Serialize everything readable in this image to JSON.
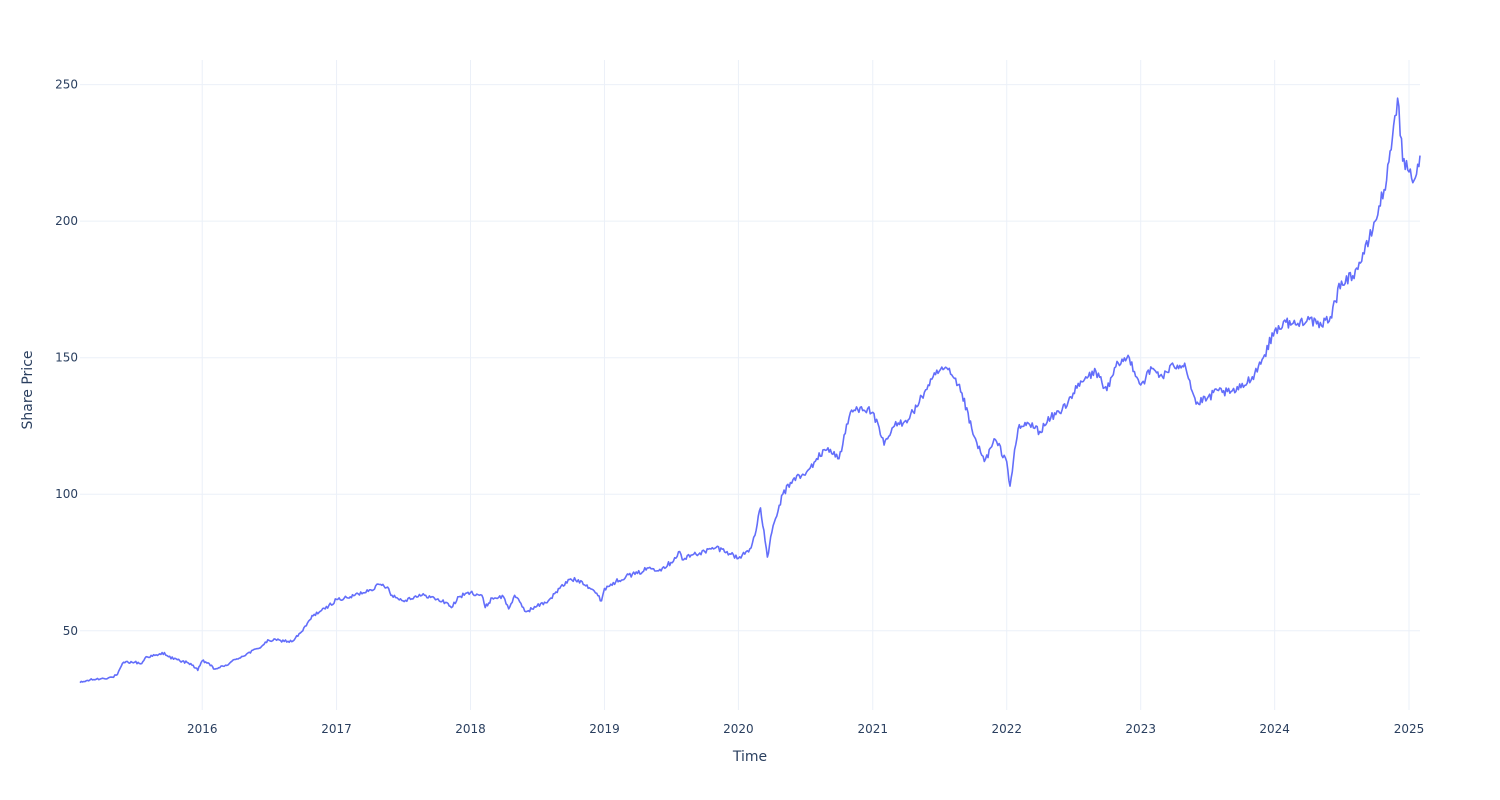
{
  "colors": {
    "line": "#636efa",
    "grid": "#ebf0f8",
    "text": "#2a3f5f",
    "background": "#ffffff"
  },
  "chart_data": {
    "type": "line",
    "title": "",
    "xlabel": "Time",
    "ylabel": "Share Price",
    "grid": true,
    "legend": "none",
    "xlim": [
      "2015-02-02",
      "2025-01-31"
    ],
    "ylim": [
      21,
      259
    ],
    "x_ticks": [
      {
        "date": "2016-01-01",
        "label": "2016"
      },
      {
        "date": "2017-01-01",
        "label": "2017"
      },
      {
        "date": "2018-01-01",
        "label": "2018"
      },
      {
        "date": "2019-01-01",
        "label": "2019"
      },
      {
        "date": "2020-01-01",
        "label": "2020"
      },
      {
        "date": "2021-01-01",
        "label": "2021"
      },
      {
        "date": "2022-01-01",
        "label": "2022"
      },
      {
        "date": "2023-01-01",
        "label": "2023"
      },
      {
        "date": "2024-01-01",
        "label": "2024"
      },
      {
        "date": "2025-01-01",
        "label": "2025"
      }
    ],
    "y_ticks": [
      {
        "value": 50,
        "label": "50"
      },
      {
        "value": 100,
        "label": "100"
      },
      {
        "value": 150,
        "label": "150"
      },
      {
        "value": 200,
        "label": "200"
      },
      {
        "value": 250,
        "label": "250"
      }
    ],
    "series": [
      {
        "name": "",
        "x": [
          "2015-02-02",
          "2015-03-01",
          "2015-04-01",
          "2015-05-01",
          "2015-05-15",
          "2015-06-01",
          "2015-07-01",
          "2015-07-20",
          "2015-08-01",
          "2015-09-01",
          "2015-09-20",
          "2015-10-01",
          "2015-11-01",
          "2015-12-01",
          "2015-12-20",
          "2016-01-01",
          "2016-01-20",
          "2016-02-01",
          "2016-02-15",
          "2016-03-01",
          "2016-04-01",
          "2016-05-01",
          "2016-06-01",
          "2016-07-01",
          "2016-08-01",
          "2016-09-01",
          "2016-10-01",
          "2016-10-20",
          "2016-11-01",
          "2016-12-01",
          "2017-01-01",
          "2017-02-01",
          "2017-03-01",
          "2017-04-01",
          "2017-05-01",
          "2017-05-20",
          "2017-06-01",
          "2017-07-01",
          "2017-08-01",
          "2017-09-01",
          "2017-10-01",
          "2017-11-01",
          "2017-11-10",
          "2017-12-01",
          "2018-01-01",
          "2018-02-01",
          "2018-02-10",
          "2018-03-01",
          "2018-04-01",
          "2018-04-15",
          "2018-05-01",
          "2018-06-01",
          "2018-07-01",
          "2018-08-01",
          "2018-09-01",
          "2018-10-01",
          "2018-11-01",
          "2018-12-01",
          "2018-12-24",
          "2019-01-01",
          "2019-02-01",
          "2019-03-01",
          "2019-04-01",
          "2019-05-01",
          "2019-06-01",
          "2019-07-01",
          "2019-07-25",
          "2019-08-01",
          "2019-09-01",
          "2019-10-01",
          "2019-11-01",
          "2019-12-01",
          "2020-01-01",
          "2020-02-01",
          "2020-02-15",
          "2020-03-01",
          "2020-03-20",
          "2020-04-01",
          "2020-05-01",
          "2020-06-01",
          "2020-07-01",
          "2020-08-01",
          "2020-09-01",
          "2020-10-01",
          "2020-11-01",
          "2020-12-01",
          "2021-01-01",
          "2021-02-01",
          "2021-03-01",
          "2021-04-01",
          "2021-05-01",
          "2021-06-01",
          "2021-07-01",
          "2021-07-15",
          "2021-08-01",
          "2021-09-01",
          "2021-10-01",
          "2021-11-01",
          "2021-12-01",
          "2022-01-01",
          "2022-01-10",
          "2022-02-01",
          "2022-03-01",
          "2022-04-01",
          "2022-05-01",
          "2022-06-01",
          "2022-07-01",
          "2022-08-01",
          "2022-09-01",
          "2022-10-01",
          "2022-11-01",
          "2022-12-01",
          "2023-01-01",
          "2023-02-01",
          "2023-03-01",
          "2023-04-01",
          "2023-05-01",
          "2023-06-01",
          "2023-07-01",
          "2023-08-01",
          "2023-09-01",
          "2023-10-01",
          "2023-11-01",
          "2023-12-01",
          "2024-01-01",
          "2024-02-01",
          "2024-03-01",
          "2024-04-01",
          "2024-05-01",
          "2024-06-01",
          "2024-07-01",
          "2024-08-01",
          "2024-09-01",
          "2024-10-01",
          "2024-11-01",
          "2024-11-20",
          "2024-12-01",
          "2024-12-15",
          "2025-01-01",
          "2025-01-15",
          "2025-01-28",
          "2025-01-31"
        ],
        "values": [
          31,
          32,
          32.5,
          33,
          34,
          38.5,
          38.5,
          38,
          40.5,
          41,
          42,
          40.5,
          39,
          38,
          35.5,
          39,
          38,
          36,
          36.5,
          37,
          39.5,
          41.5,
          43.5,
          46.5,
          46.5,
          46,
          50,
          54,
          56,
          58,
          61.5,
          62,
          63.5,
          65,
          67,
          66,
          63,
          61,
          62.5,
          63,
          61.5,
          60,
          58.5,
          62.5,
          64,
          63,
          58.5,
          62,
          62.5,
          58,
          63,
          57,
          59,
          61,
          65.5,
          69,
          68,
          65,
          61,
          65.5,
          68,
          70,
          71,
          73,
          72.5,
          75,
          79,
          76,
          78,
          79,
          80.5,
          79,
          76.5,
          80,
          85,
          95,
          77,
          86,
          100,
          106,
          107,
          113,
          117,
          113,
          130,
          132,
          130,
          118,
          125,
          127,
          132,
          140,
          145,
          146,
          144,
          137,
          122,
          112,
          120,
          112,
          103,
          124,
          126,
          123,
          128,
          131,
          137,
          142,
          145,
          138,
          148,
          150,
          140,
          146,
          143,
          147,
          148,
          133,
          135,
          138,
          137,
          139,
          143,
          150,
          160,
          163,
          162,
          165,
          161,
          165,
          178,
          180,
          188,
          200,
          215,
          235,
          245,
          222,
          218,
          215,
          220,
          224
        ]
      }
    ]
  }
}
